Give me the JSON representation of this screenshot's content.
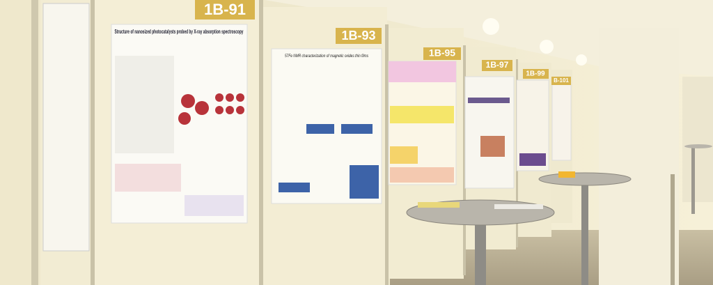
{
  "boards": [
    {
      "label": "1B-91"
    },
    {
      "label": "1B-93"
    },
    {
      "label": "1B-95"
    },
    {
      "label": "1B-97"
    },
    {
      "label": "1B-99"
    },
    {
      "label": "B-101"
    }
  ],
  "posters": [
    {
      "title": "Structure of nanosized photocatalysts probed by X-ray absorption spectroscopy"
    },
    {
      "title": "57Fe NMR characterization of magnetic oxides thin films"
    }
  ]
}
